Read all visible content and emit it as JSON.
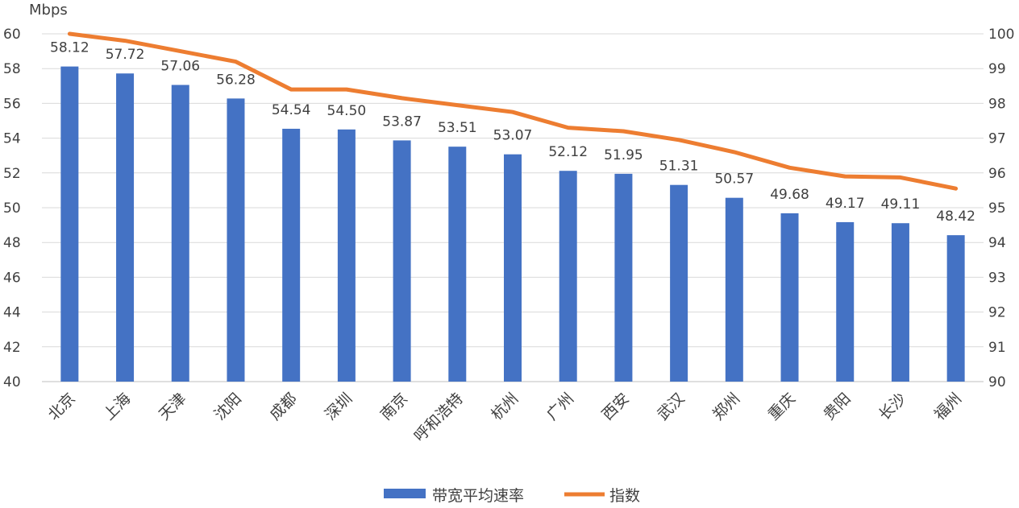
{
  "chart_data": {
    "type": "bar+line",
    "title": "",
    "y_left_unit": "Mbps",
    "y_left_range": [
      40,
      60
    ],
    "y_left_ticks": [
      "40",
      "42",
      "44",
      "46",
      "48",
      "50",
      "52",
      "54",
      "56",
      "58",
      "60"
    ],
    "y_right_range": [
      90,
      100
    ],
    "y_right_ticks": [
      "90",
      "91",
      "92",
      "93",
      "94",
      "95",
      "96",
      "97",
      "98",
      "99",
      "100"
    ],
    "grid": true,
    "legend_position": "bottom",
    "categories": [
      "北京",
      "上海",
      "天津",
      "沈阳",
      "成都",
      "深圳",
      "南京",
      "呼和浩特",
      "杭州",
      "广州",
      "西安",
      "武汉",
      "郑州",
      "重庆",
      "贵阳",
      "长沙",
      "福州"
    ],
    "series": [
      {
        "name": "带宽平均速率",
        "type": "bar",
        "axis": "left",
        "color": "#4472C4",
        "values": [
          58.12,
          57.72,
          57.06,
          56.28,
          54.54,
          54.5,
          53.87,
          53.51,
          53.07,
          52.12,
          51.95,
          51.31,
          50.57,
          49.68,
          49.17,
          49.11,
          48.42
        ],
        "labels": [
          "58.12",
          "57.72",
          "57.06",
          "56.28",
          "54.54",
          "54.50",
          "53.87",
          "53.51",
          "53.07",
          "52.12",
          "51.95",
          "51.31",
          "50.57",
          "49.68",
          "49.17",
          "49.11",
          "48.42"
        ]
      },
      {
        "name": "指数",
        "type": "line",
        "axis": "right",
        "color": "#ED7D31",
        "values": [
          100,
          99.8,
          99.5,
          99.2,
          98.4,
          98.4,
          98.15,
          97.95,
          97.75,
          97.3,
          97.2,
          96.95,
          96.6,
          96.15,
          95.9,
          95.87,
          95.55
        ]
      }
    ]
  }
}
